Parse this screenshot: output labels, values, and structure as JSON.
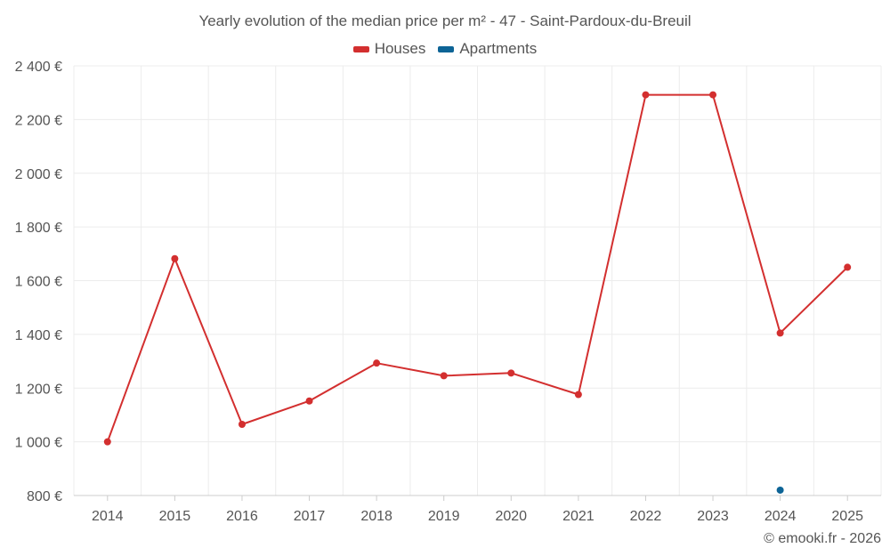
{
  "chart_data": {
    "type": "line",
    "title": "Yearly evolution of the median price per m² - 47 - Saint-Pardoux-du-Breuil",
    "categories": [
      "2014",
      "2015",
      "2016",
      "2017",
      "2018",
      "2019",
      "2020",
      "2021",
      "2022",
      "2023",
      "2024",
      "2025"
    ],
    "series": [
      {
        "name": "Houses",
        "color": "#d32f2f",
        "values": [
          1000,
          1682,
          1065,
          1152,
          1293,
          1246,
          1256,
          1176,
          2292,
          2292,
          1405,
          1650
        ]
      },
      {
        "name": "Apartments",
        "color": "#0d6496",
        "values": [
          null,
          null,
          null,
          null,
          null,
          null,
          null,
          null,
          null,
          null,
          820,
          null
        ]
      }
    ],
    "ylim": [
      800,
      2400
    ],
    "yticks": [
      800,
      1000,
      1200,
      1400,
      1600,
      1800,
      2000,
      2200,
      2400
    ],
    "ytick_labels": [
      "800 €",
      "1 000 €",
      "1 200 €",
      "1 400 €",
      "1 600 €",
      "1 800 €",
      "2 000 €",
      "2 200 €",
      "2 400 €"
    ],
    "xlabel": "",
    "ylabel": "",
    "grid": true,
    "legend_position": "top-center"
  },
  "credit": "© emooki.fr - 2026"
}
